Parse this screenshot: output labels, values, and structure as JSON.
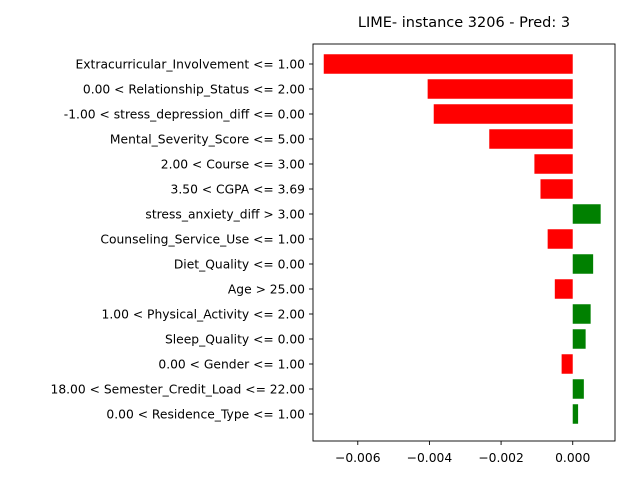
{
  "chart_data": {
    "type": "bar",
    "orientation": "horizontal",
    "title": "LIME- instance 3206 - Pred: 3",
    "xlabel": "",
    "ylabel": "",
    "xlim": [
      -0.00725,
      0.00118
    ],
    "xticks": [
      -0.006,
      -0.004,
      -0.002,
      0.0
    ],
    "xtick_labels": [
      "−0.006",
      "−0.004",
      "−0.002",
      "0.000"
    ],
    "grid": false,
    "colors": {
      "positive": "#008000",
      "negative": "#ff0000"
    },
    "categories": [
      "Extracurricular_Involvement <= 1.00",
      "0.00 < Relationship_Status <= 2.00",
      "-1.00 < stress_depression_diff <= 0.00",
      "Mental_Severity_Score <= 5.00",
      "2.00 < Course <= 3.00",
      "3.50 < CGPA <= 3.69",
      "stress_anxiety_diff > 3.00",
      "Counseling_Service_Use <= 1.00",
      "Diet_Quality <= 0.00",
      "Age > 25.00",
      "1.00 < Physical_Activity <= 2.00",
      "Sleep_Quality <= 0.00",
      "0.00 < Gender <= 1.00",
      "18.00 < Semester_Credit_Load <= 22.00",
      "0.00 < Residence_Type <= 1.00"
    ],
    "values": [
      -0.00695,
      -0.00405,
      -0.00388,
      -0.00233,
      -0.00107,
      -0.0009,
      0.00078,
      -0.0007,
      0.00057,
      -0.0005,
      0.0005,
      0.00036,
      -0.00031,
      0.00031,
      0.00015
    ]
  }
}
